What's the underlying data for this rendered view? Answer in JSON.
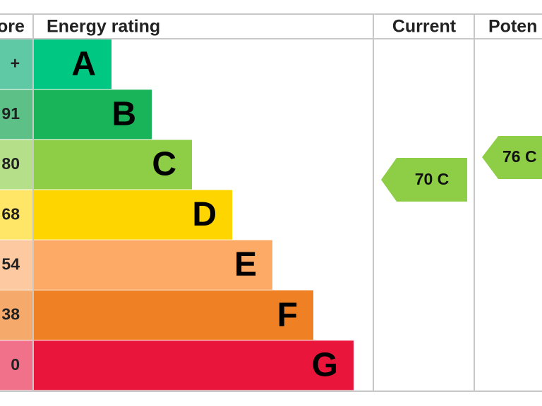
{
  "header": {
    "score_label": "ore",
    "rating_label": "Energy rating",
    "current_label": "Current",
    "potential_label": "Poten"
  },
  "rows": [
    {
      "score": "+",
      "band": "A"
    },
    {
      "score": "91",
      "band": "B"
    },
    {
      "score": "80",
      "band": "C"
    },
    {
      "score": "68",
      "band": "D"
    },
    {
      "score": "54",
      "band": "E"
    },
    {
      "score": "38",
      "band": "F"
    },
    {
      "score": "0",
      "band": "G"
    }
  ],
  "current": {
    "label": "70 C"
  },
  "potential": {
    "label": "76 C"
  }
}
